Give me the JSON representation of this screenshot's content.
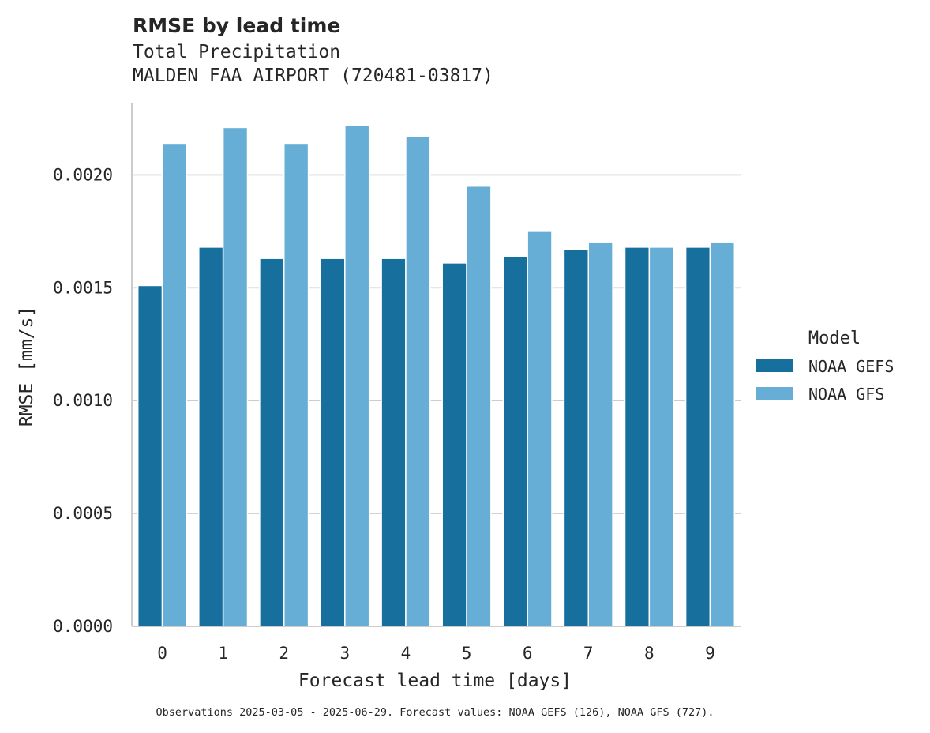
{
  "chart_data": {
    "type": "bar",
    "title": "RMSE by lead time",
    "subtitle_lines": [
      "Total Precipitation",
      "MALDEN FAA AIRPORT (720481-03817)"
    ],
    "xlabel": "Forecast lead time [days]",
    "ylabel": "RMSE [mm/s]",
    "categories": [
      "0",
      "1",
      "2",
      "3",
      "4",
      "5",
      "6",
      "7",
      "8",
      "9"
    ],
    "ylim": [
      0,
      0.00232
    ],
    "yticks": [
      0.0,
      0.0005,
      0.001,
      0.0015,
      0.002
    ],
    "ytick_labels": [
      "0.0000",
      "0.0005",
      "0.0010",
      "0.0015",
      "0.0020"
    ],
    "grid": "horizontal",
    "legend": {
      "title": "Model",
      "placement": "right"
    },
    "series": [
      {
        "name": "NOAA GEFS",
        "color": "#176f9e",
        "values": [
          0.00151,
          0.00168,
          0.00163,
          0.00163,
          0.00163,
          0.00161,
          0.00164,
          0.00167,
          0.00168,
          0.00168
        ]
      },
      {
        "name": "NOAA GFS",
        "color": "#66aed6",
        "values": [
          0.00214,
          0.00221,
          0.00214,
          0.00222,
          0.00217,
          0.00195,
          0.00175,
          0.0017,
          0.00168,
          0.0017
        ]
      }
    ],
    "footnote": "Observations 2025-03-05 - 2025-06-29. Forecast values: NOAA GEFS (126), NOAA GFS (727)."
  }
}
